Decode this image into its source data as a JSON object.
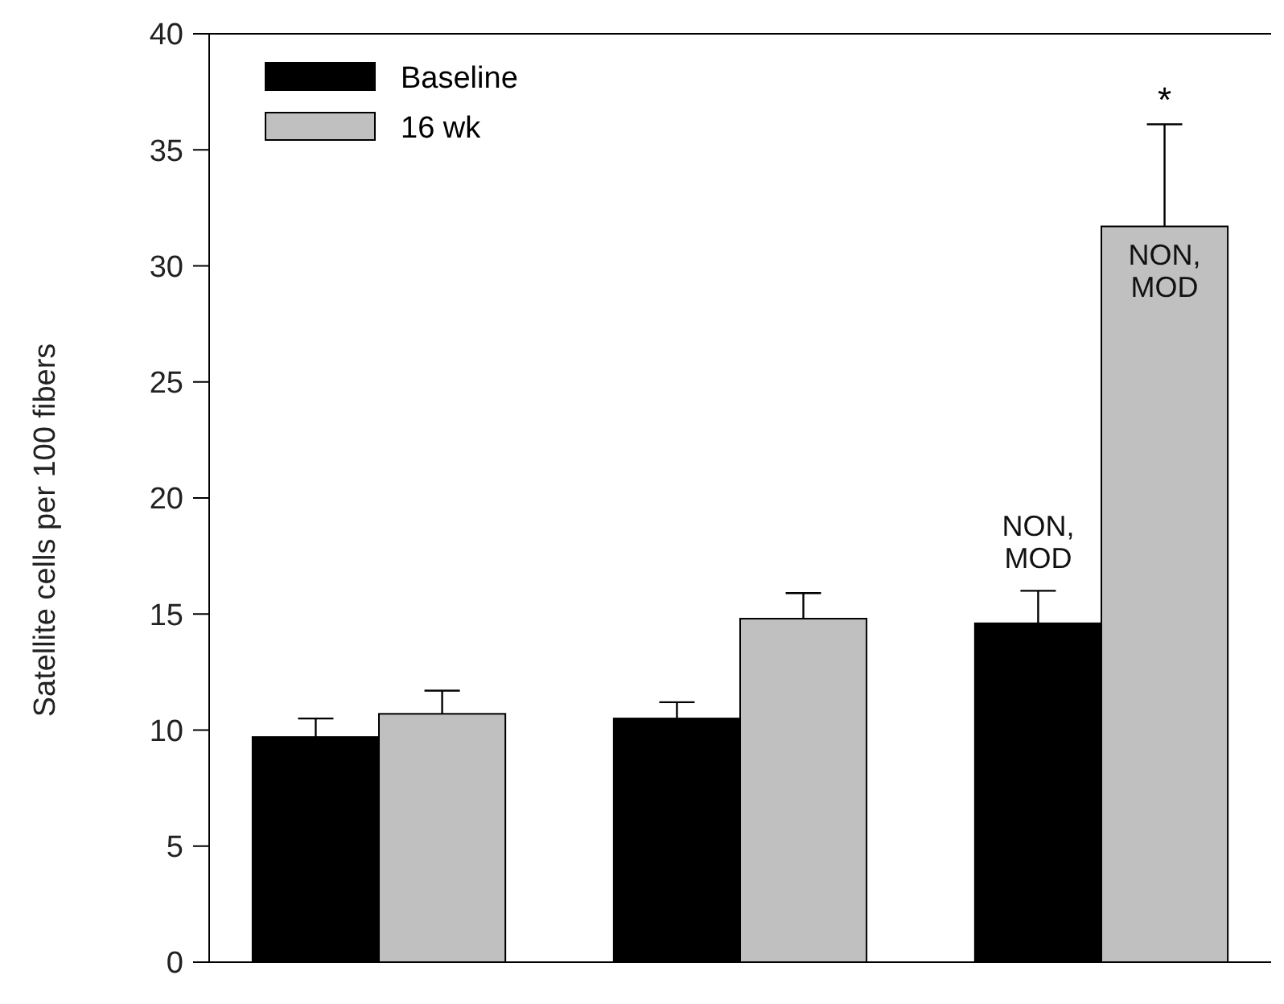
{
  "chart_data": {
    "type": "bar",
    "ylabel": "Satellite cells per 100 fibers",
    "categories": [
      null,
      null,
      null
    ],
    "series": [
      {
        "name": "Baseline",
        "color": "#000000",
        "values": [
          9.7,
          10.5,
          14.6
        ],
        "errors": [
          [
            9.7,
            10.5
          ],
          [
            10.5,
            11.2
          ],
          [
            14.6,
            16.0
          ]
        ]
      },
      {
        "name": "16 wk",
        "color": "#c0c0c0",
        "values": [
          10.7,
          14.8,
          31.7
        ],
        "errors": [
          [
            10.7,
            11.7
          ],
          [
            14.8,
            15.9
          ],
          [
            31.7,
            36.1
          ]
        ]
      }
    ],
    "ylim": [
      0,
      40
    ],
    "yticks": [
      0,
      5,
      10,
      15,
      20,
      25,
      30,
      35,
      40
    ],
    "legend": "top left",
    "annotations": [
      "NON, MOD",
      "NON, MOD",
      "*"
    ]
  }
}
